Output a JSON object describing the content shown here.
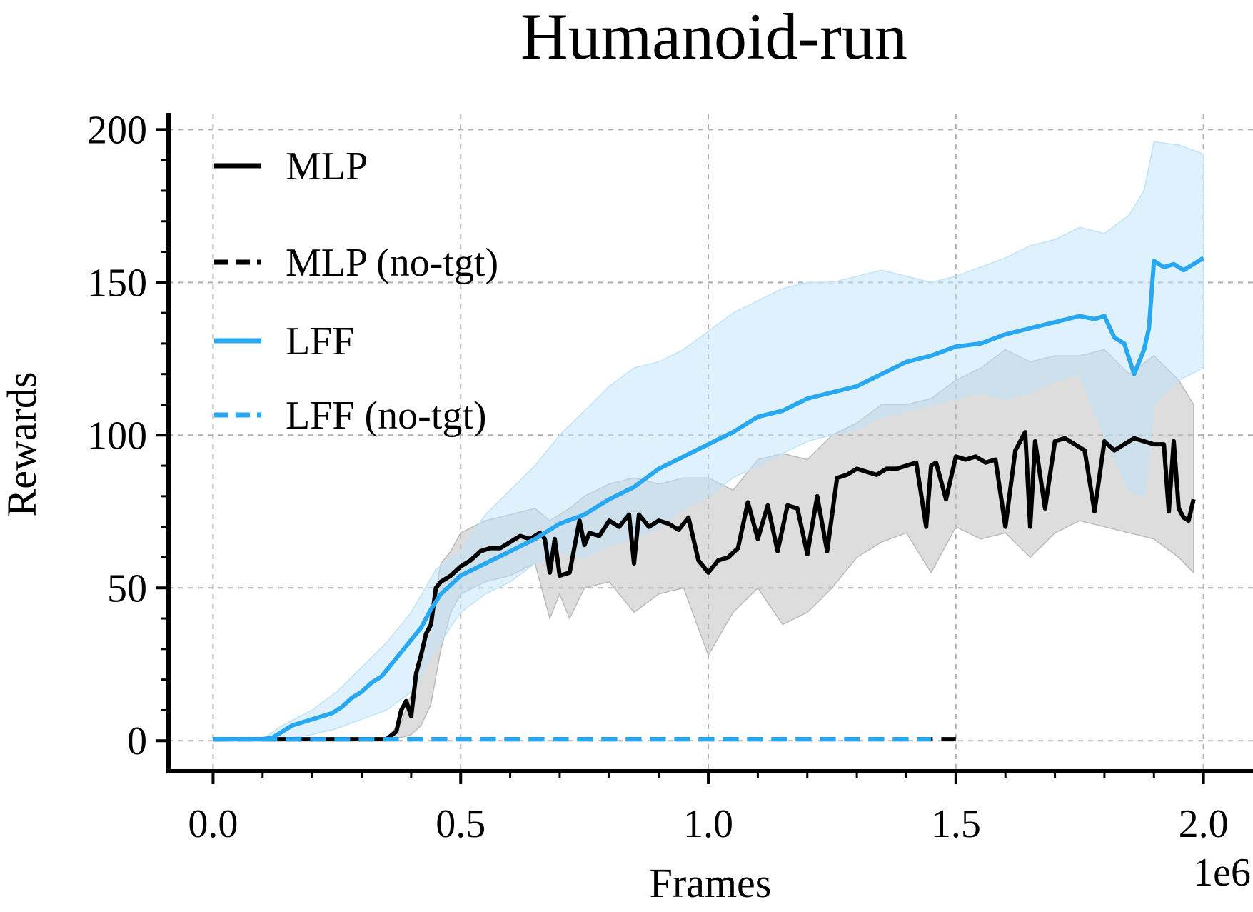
{
  "chart_data": {
    "type": "line",
    "title": "Humanoid-run",
    "xlabel": "Frames",
    "ylabel": "Rewards",
    "x_offset_label": "1e6",
    "xlim": [
      -0.09,
      2.1
    ],
    "ylim": [
      -10,
      205
    ],
    "xticks": [
      0.0,
      0.5,
      1.0,
      1.5,
      2.0
    ],
    "xtick_labels": [
      "0.0",
      "0.5",
      "1.0",
      "1.5",
      "2.0"
    ],
    "yticks": [
      0,
      50,
      100,
      150,
      200
    ],
    "ytick_labels": [
      "0",
      "50",
      "100",
      "150",
      "200"
    ],
    "grid": true,
    "legend_position": "upper-left",
    "series": [
      {
        "name": "MLP",
        "color": "#000000",
        "style": "solid",
        "x": [
          0.0,
          0.1,
          0.2,
          0.3,
          0.35,
          0.37,
          0.38,
          0.39,
          0.4,
          0.41,
          0.42,
          0.43,
          0.44,
          0.45,
          0.46,
          0.48,
          0.5,
          0.52,
          0.54,
          0.56,
          0.58,
          0.6,
          0.62,
          0.64,
          0.66,
          0.67,
          0.68,
          0.69,
          0.7,
          0.72,
          0.74,
          0.75,
          0.76,
          0.78,
          0.8,
          0.82,
          0.84,
          0.85,
          0.86,
          0.88,
          0.9,
          0.92,
          0.94,
          0.96,
          0.98,
          1.0,
          1.02,
          1.04,
          1.06,
          1.08,
          1.1,
          1.12,
          1.14,
          1.16,
          1.18,
          1.2,
          1.22,
          1.24,
          1.26,
          1.28,
          1.3,
          1.32,
          1.34,
          1.36,
          1.38,
          1.4,
          1.42,
          1.44,
          1.45,
          1.46,
          1.48,
          1.5,
          1.52,
          1.54,
          1.56,
          1.58,
          1.6,
          1.62,
          1.64,
          1.65,
          1.66,
          1.68,
          1.7,
          1.72,
          1.74,
          1.76,
          1.78,
          1.8,
          1.82,
          1.84,
          1.86,
          1.88,
          1.9,
          1.92,
          1.93,
          1.94,
          1.95,
          1.96,
          1.97,
          1.98
        ],
        "y": [
          0.5,
          0.5,
          0.5,
          0.5,
          0.5,
          3,
          10,
          13,
          8,
          22,
          28,
          35,
          38,
          50,
          52,
          54,
          57,
          59,
          62,
          63,
          63,
          65,
          67,
          66,
          68,
          66,
          55,
          66,
          54,
          55,
          72,
          64,
          68,
          67,
          72,
          70,
          74,
          58,
          74,
          70,
          72,
          71,
          69,
          73,
          59,
          55,
          59,
          60,
          63,
          78,
          66,
          77,
          62,
          77,
          76,
          61,
          80,
          62,
          86,
          87,
          89,
          88,
          87,
          89,
          89,
          90,
          91,
          70,
          90,
          91,
          79,
          93,
          92,
          93,
          91,
          92,
          70,
          95,
          101,
          70,
          98,
          76,
          98,
          99,
          97,
          95,
          75,
          98,
          95,
          97,
          99,
          98,
          97,
          97,
          75,
          98,
          76,
          73,
          72,
          79
        ]
      },
      {
        "name": "MLP (no-tgt)",
        "color": "#000000",
        "style": "dashed",
        "x": [
          0.0,
          0.25,
          0.5,
          0.75,
          1.0,
          1.25,
          1.5
        ],
        "y": [
          0.5,
          0.5,
          0.5,
          0.5,
          0.5,
          0.5,
          0.5
        ]
      },
      {
        "name": "LFF",
        "color": "#29a8f2",
        "style": "solid",
        "x": [
          0.0,
          0.05,
          0.1,
          0.12,
          0.14,
          0.16,
          0.18,
          0.2,
          0.22,
          0.24,
          0.26,
          0.28,
          0.3,
          0.32,
          0.34,
          0.36,
          0.38,
          0.4,
          0.42,
          0.44,
          0.46,
          0.48,
          0.5,
          0.55,
          0.6,
          0.65,
          0.7,
          0.75,
          0.8,
          0.85,
          0.9,
          0.95,
          1.0,
          1.05,
          1.1,
          1.15,
          1.2,
          1.25,
          1.3,
          1.35,
          1.4,
          1.45,
          1.5,
          1.55,
          1.6,
          1.65,
          1.7,
          1.75,
          1.78,
          1.8,
          1.82,
          1.84,
          1.86,
          1.88,
          1.89,
          1.9,
          1.92,
          1.94,
          1.96,
          1.98,
          2.0
        ],
        "y": [
          0.5,
          0.5,
          0.5,
          1,
          3,
          5,
          6,
          7,
          8,
          9,
          11,
          14,
          16,
          19,
          21,
          25,
          29,
          33,
          37,
          43,
          48,
          51,
          54,
          58,
          62,
          66,
          71,
          74,
          79,
          83,
          89,
          93,
          97,
          101,
          106,
          108,
          112,
          114,
          116,
          120,
          124,
          126,
          129,
          130,
          133,
          135,
          137,
          139,
          138,
          139,
          132,
          130,
          120,
          128,
          135,
          157,
          155,
          156,
          154,
          156,
          158
        ]
      },
      {
        "name": "LFF (no-tgt)",
        "color": "#29a8f2",
        "style": "dashed",
        "x": [
          0.0,
          0.25,
          0.5,
          0.75,
          1.0,
          1.25,
          1.45
        ],
        "y": [
          0.5,
          0.5,
          0.5,
          0.5,
          0.5,
          0.5,
          0.5
        ]
      }
    ],
    "bands": [
      {
        "series": "MLP",
        "color": "#bbbbbb",
        "x": [
          0.0,
          0.1,
          0.2,
          0.3,
          0.35,
          0.38,
          0.4,
          0.42,
          0.44,
          0.46,
          0.48,
          0.5,
          0.55,
          0.6,
          0.65,
          0.68,
          0.7,
          0.72,
          0.75,
          0.8,
          0.85,
          0.9,
          0.95,
          1.0,
          1.05,
          1.1,
          1.15,
          1.2,
          1.25,
          1.3,
          1.35,
          1.4,
          1.45,
          1.5,
          1.55,
          1.6,
          1.65,
          1.7,
          1.75,
          1.8,
          1.85,
          1.9,
          1.95,
          1.98
        ],
        "low": [
          0.5,
          0.5,
          0.5,
          0.5,
          0.5,
          1,
          2,
          5,
          12,
          30,
          42,
          48,
          52,
          54,
          58,
          40,
          48,
          40,
          50,
          52,
          42,
          48,
          50,
          28,
          42,
          50,
          38,
          42,
          50,
          60,
          65,
          68,
          55,
          70,
          66,
          68,
          60,
          68,
          72,
          70,
          68,
          66,
          60,
          55
        ],
        "high": [
          0.5,
          0.5,
          0.5,
          0.5,
          1,
          6,
          15,
          25,
          40,
          58,
          62,
          68,
          72,
          74,
          76,
          72,
          74,
          76,
          80,
          84,
          86,
          84,
          86,
          86,
          82,
          92,
          94,
          92,
          100,
          104,
          110,
          110,
          112,
          118,
          122,
          128,
          124,
          126,
          126,
          128,
          120,
          126,
          118,
          110
        ]
      },
      {
        "series": "LFF",
        "color": "#bfe4fa",
        "x": [
          0.0,
          0.1,
          0.14,
          0.2,
          0.25,
          0.3,
          0.35,
          0.4,
          0.45,
          0.5,
          0.55,
          0.6,
          0.65,
          0.7,
          0.75,
          0.8,
          0.85,
          0.9,
          0.95,
          1.0,
          1.05,
          1.1,
          1.15,
          1.2,
          1.25,
          1.3,
          1.35,
          1.4,
          1.45,
          1.5,
          1.55,
          1.6,
          1.65,
          1.7,
          1.75,
          1.8,
          1.85,
          1.88,
          1.9,
          1.95,
          2.0
        ],
        "low": [
          0.5,
          0.5,
          0.5,
          2,
          4,
          7,
          10,
          16,
          30,
          42,
          48,
          52,
          58,
          62,
          60,
          64,
          66,
          70,
          76,
          80,
          86,
          90,
          94,
          98,
          100,
          102,
          106,
          108,
          110,
          112,
          114,
          112,
          114,
          118,
          120,
          100,
          82,
          80,
          110,
          118,
          122
        ],
        "high": [
          0.5,
          0.5,
          5,
          10,
          16,
          24,
          32,
          42,
          56,
          62,
          74,
          82,
          90,
          100,
          108,
          116,
          122,
          124,
          128,
          134,
          140,
          144,
          148,
          150,
          150,
          152,
          154,
          152,
          150,
          152,
          155,
          158,
          162,
          164,
          168,
          166,
          172,
          180,
          196,
          195,
          192
        ]
      }
    ]
  }
}
